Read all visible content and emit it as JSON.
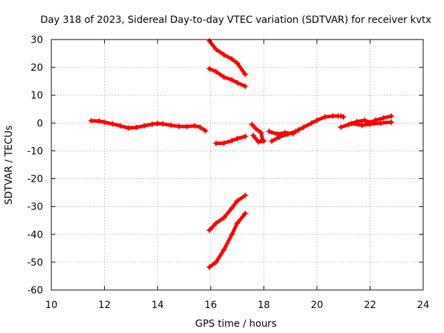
{
  "chart_data": {
    "type": "scatter",
    "title": "Day 318 of 2023, Sidereal Day-to-day VTEC variation (SDTVAR) for receiver kvtx",
    "xlabel": "GPS time / hours",
    "ylabel": "SDTVAR / TECUs",
    "xlim": [
      10,
      24
    ],
    "ylim": [
      -60,
      30
    ],
    "xticks": [
      10,
      12,
      14,
      16,
      18,
      20,
      22,
      24
    ],
    "yticks": [
      -60,
      -50,
      -40,
      -30,
      -20,
      -10,
      0,
      10,
      20,
      30
    ],
    "grid": true,
    "marker": "plus",
    "color": "#ff0000",
    "series": [
      {
        "points": [
          [
            11.5,
            0.8
          ],
          [
            11.8,
            0.7
          ],
          [
            12.0,
            0.3
          ],
          [
            12.3,
            -0.3
          ],
          [
            12.6,
            -1.0
          ],
          [
            12.9,
            -1.8
          ],
          [
            13.2,
            -1.6
          ],
          [
            13.5,
            -1.0
          ],
          [
            13.8,
            -0.4
          ],
          [
            14.0,
            -0.2
          ],
          [
            14.2,
            -0.3
          ],
          [
            14.5,
            -0.8
          ],
          [
            14.8,
            -1.2
          ],
          [
            15.1,
            -1.3
          ],
          [
            15.4,
            -1.0
          ],
          [
            15.6,
            -1.5
          ],
          [
            15.8,
            -2.8
          ]
        ]
      },
      {
        "points": [
          [
            16.2,
            -7.3
          ],
          [
            16.5,
            -7.2
          ],
          [
            16.8,
            -6.3
          ],
          [
            17.0,
            -5.6
          ],
          [
            17.3,
            -4.8
          ]
        ]
      },
      {
        "points": [
          [
            15.95,
            29.5
          ],
          [
            16.2,
            26.5
          ],
          [
            16.5,
            24.5
          ],
          [
            16.8,
            23.0
          ],
          [
            17.0,
            21.5
          ],
          [
            17.3,
            17.5
          ]
        ]
      },
      {
        "points": [
          [
            15.95,
            19.5
          ],
          [
            16.2,
            18.5
          ],
          [
            16.5,
            16.5
          ],
          [
            16.8,
            15.5
          ],
          [
            17.0,
            14.5
          ],
          [
            17.3,
            13.2
          ]
        ]
      },
      {
        "points": [
          [
            15.95,
            -38.5
          ],
          [
            16.2,
            -36.0
          ],
          [
            16.5,
            -34.0
          ],
          [
            16.8,
            -30.5
          ],
          [
            17.0,
            -28.0
          ],
          [
            17.3,
            -26.0
          ]
        ]
      },
      {
        "points": [
          [
            15.95,
            -51.8
          ],
          [
            16.2,
            -50.0
          ],
          [
            16.5,
            -45.5
          ],
          [
            16.8,
            -40.0
          ],
          [
            17.0,
            -36.0
          ],
          [
            17.3,
            -32.5
          ]
        ]
      },
      {
        "points": [
          [
            17.55,
            -0.5
          ],
          [
            17.7,
            -2.0
          ],
          [
            17.9,
            -3.5
          ],
          [
            17.95,
            -6.0
          ]
        ]
      },
      {
        "points": [
          [
            17.6,
            -4.5
          ],
          [
            17.8,
            -6.8
          ],
          [
            18.0,
            -6.5
          ]
        ]
      },
      {
        "points": [
          [
            18.2,
            -3.0
          ],
          [
            18.5,
            -4.0
          ],
          [
            18.8,
            -3.5
          ],
          [
            19.1,
            -3.8
          ],
          [
            19.3,
            -2.5
          ],
          [
            19.5,
            -1.5
          ],
          [
            19.8,
            0.0
          ],
          [
            20.0,
            1.0
          ],
          [
            20.3,
            2.2
          ],
          [
            20.6,
            2.5
          ],
          [
            20.8,
            2.5
          ]
        ]
      },
      {
        "points": [
          [
            18.3,
            -6.5
          ],
          [
            18.6,
            -5.0
          ],
          [
            18.9,
            -4.0
          ],
          [
            19.2,
            -3.0
          ]
        ]
      },
      {
        "points": [
          [
            20.9,
            -1.5
          ],
          [
            21.2,
            -0.5
          ],
          [
            21.5,
            0.5
          ],
          [
            21.8,
            1.0
          ],
          [
            22.0,
            0.2
          ],
          [
            22.2,
            1.0
          ],
          [
            22.5,
            1.8
          ],
          [
            22.8,
            2.5
          ]
        ]
      },
      {
        "points": [
          [
            21.3,
            -0.2
          ],
          [
            21.7,
            -0.8
          ],
          [
            22.0,
            -0.4
          ],
          [
            22.4,
            0.0
          ],
          [
            22.8,
            0.3
          ]
        ]
      },
      {
        "points": [
          [
            20.9,
            2.5
          ],
          [
            21.0,
            2.2
          ]
        ]
      }
    ]
  }
}
